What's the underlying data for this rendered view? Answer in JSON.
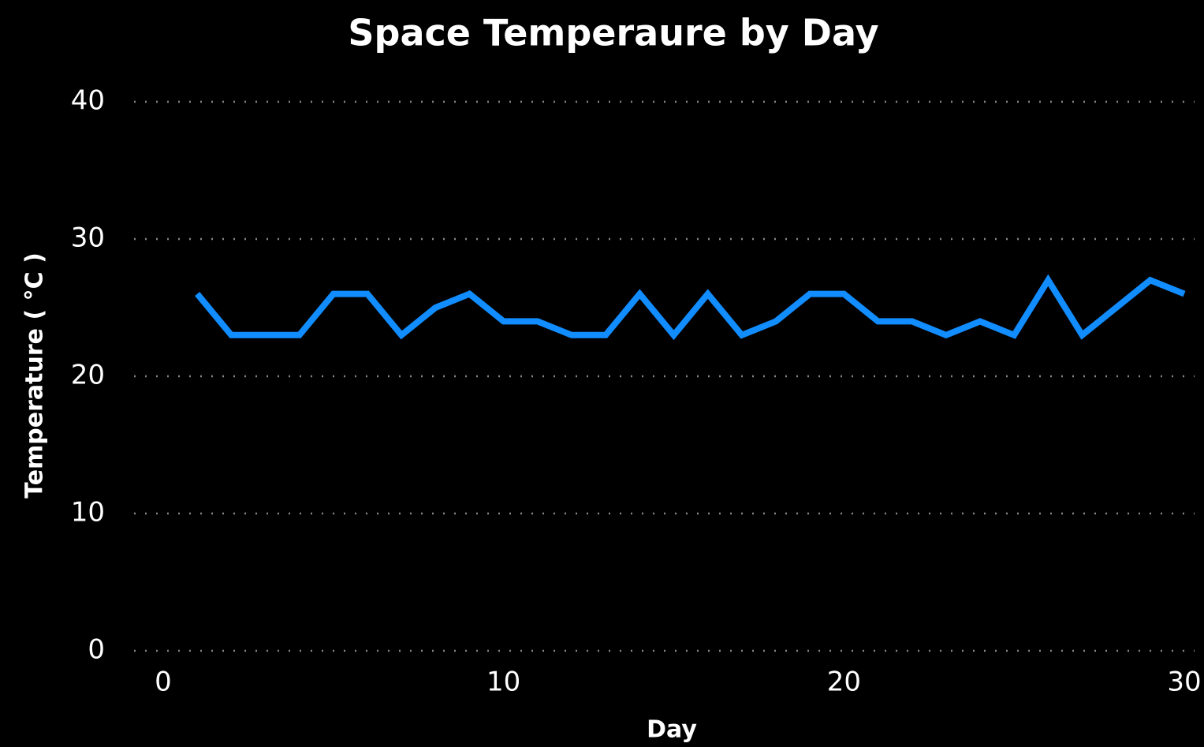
{
  "chart_data": {
    "type": "line",
    "title": "Space Temperaure by Day",
    "x_label": "Day",
    "y_label": "Temperature ( °C )",
    "x": [
      1,
      2,
      3,
      4,
      5,
      6,
      7,
      8,
      9,
      10,
      11,
      12,
      13,
      14,
      15,
      16,
      17,
      18,
      19,
      20,
      21,
      22,
      23,
      24,
      25,
      26,
      27,
      28,
      29,
      30
    ],
    "values": [
      26,
      23,
      23,
      23,
      26,
      26,
      23,
      25,
      26,
      24,
      24,
      23,
      23,
      26,
      23,
      26,
      23,
      24,
      26,
      26,
      24,
      24,
      23,
      24,
      23,
      27,
      23,
      25,
      27,
      26
    ],
    "color": "#118dff",
    "xlim": [
      0,
      30
    ],
    "xticks": [
      0,
      10,
      20,
      30
    ],
    "ylim": [
      0,
      40
    ],
    "yticks": [
      0,
      10,
      20,
      30,
      40
    ],
    "grid": true
  }
}
